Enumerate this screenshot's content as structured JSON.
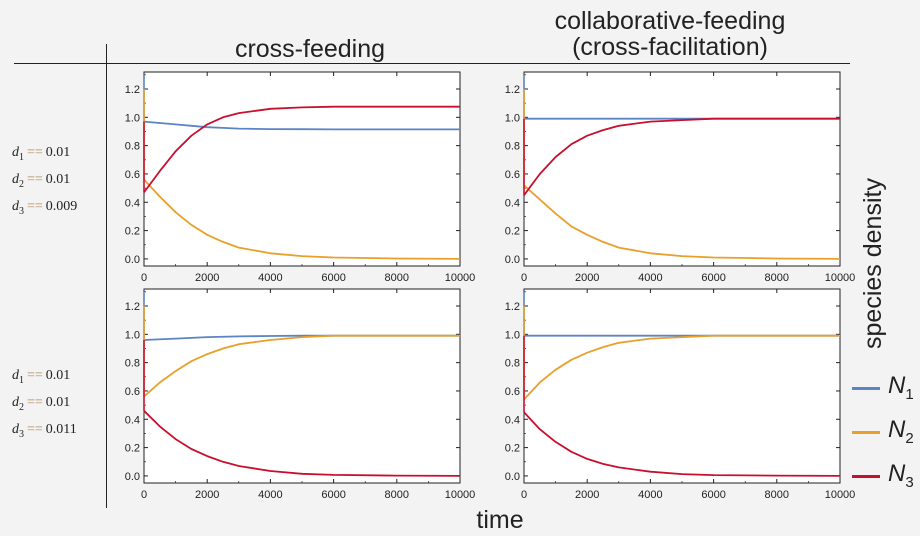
{
  "columns": [
    {
      "title_lines": [
        "cross-feeding"
      ]
    },
    {
      "title_lines": [
        "collaborative-feeding",
        "(cross-facilitation)"
      ]
    }
  ],
  "rows": [
    {
      "params": [
        {
          "sym": "d",
          "sub": "1",
          "eq": "==",
          "val": "0.01"
        },
        {
          "sym": "d",
          "sub": "2",
          "eq": "==",
          "val": "0.01"
        },
        {
          "sym": "d",
          "sub": "3",
          "eq": "==",
          "val": "0.009"
        }
      ]
    },
    {
      "params": [
        {
          "sym": "d",
          "sub": "1",
          "eq": "==",
          "val": "0.01"
        },
        {
          "sym": "d",
          "sub": "2",
          "eq": "==",
          "val": "0.01"
        },
        {
          "sym": "d",
          "sub": "3",
          "eq": "==",
          "val": "0.011"
        }
      ]
    }
  ],
  "ylabel": "species density",
  "xlabel": "time",
  "legend": [
    {
      "sym": "N",
      "sub": "1",
      "color": "#5b84c4"
    },
    {
      "sym": "N",
      "sub": "2",
      "color": "#e8a02b"
    },
    {
      "sym": "N",
      "sub": "3",
      "color": "#c8102e"
    }
  ],
  "chart_data": [
    {
      "type": "line",
      "panel": "cross-feeding, row 1",
      "xlim": [
        0,
        10000
      ],
      "ylim": [
        -0.05,
        1.32
      ],
      "xticks": [
        "0",
        "2000",
        "4000",
        "6000",
        "8000",
        "10000"
      ],
      "yticks": [
        "0.0",
        "0.2",
        "0.4",
        "0.6",
        "0.8",
        "1.0",
        "1.2"
      ],
      "series": [
        {
          "color": "#5b84c4",
          "initial_spike": 1.3,
          "x": [
            0,
            500,
            1000,
            1500,
            2000,
            2500,
            3000,
            4000,
            5000,
            6000,
            8000,
            10000
          ],
          "y": [
            0.97,
            0.96,
            0.95,
            0.94,
            0.93,
            0.925,
            0.92,
            0.917,
            0.916,
            0.915,
            0.915,
            0.915
          ]
        },
        {
          "color": "#e8a02b",
          "initial_spike": 1.2,
          "x": [
            0,
            500,
            1000,
            1500,
            2000,
            2500,
            3000,
            4000,
            5000,
            6000,
            8000,
            10000
          ],
          "y": [
            0.56,
            0.44,
            0.33,
            0.24,
            0.17,
            0.12,
            0.08,
            0.04,
            0.02,
            0.01,
            0.003,
            0.0
          ]
        },
        {
          "color": "#c8102e",
          "initial_spike": 0.97,
          "x": [
            0,
            500,
            1000,
            1500,
            2000,
            2500,
            3000,
            4000,
            5000,
            6000,
            8000,
            10000
          ],
          "y": [
            0.47,
            0.62,
            0.76,
            0.87,
            0.95,
            1.0,
            1.03,
            1.06,
            1.07,
            1.075,
            1.075,
            1.075
          ]
        }
      ]
    },
    {
      "type": "line",
      "panel": "collaborative-feeding, row 1",
      "xlim": [
        0,
        10000
      ],
      "ylim": [
        -0.05,
        1.32
      ],
      "xticks": [
        "0",
        "2000",
        "4000",
        "6000",
        "8000",
        "10000"
      ],
      "yticks": [
        "0.0",
        "0.2",
        "0.4",
        "0.6",
        "0.8",
        "1.0",
        "1.2"
      ],
      "series": [
        {
          "color": "#5b84c4",
          "initial_spike": 1.3,
          "x": [
            0,
            2000,
            4000,
            6000,
            8000,
            10000
          ],
          "y": [
            0.99,
            0.99,
            0.99,
            0.99,
            0.99,
            0.99
          ]
        },
        {
          "color": "#e8a02b",
          "initial_spike": 1.2,
          "x": [
            0,
            500,
            1000,
            1500,
            2000,
            2500,
            3000,
            4000,
            5000,
            6000,
            8000,
            10000
          ],
          "y": [
            0.52,
            0.42,
            0.32,
            0.23,
            0.17,
            0.12,
            0.08,
            0.04,
            0.02,
            0.01,
            0.003,
            0.0
          ]
        },
        {
          "color": "#c8102e",
          "initial_spike": 0.99,
          "x": [
            0,
            500,
            1000,
            1500,
            2000,
            2500,
            3000,
            4000,
            5000,
            6000,
            8000,
            10000
          ],
          "y": [
            0.45,
            0.6,
            0.72,
            0.81,
            0.87,
            0.91,
            0.94,
            0.97,
            0.98,
            0.99,
            0.99,
            0.99
          ]
        }
      ]
    },
    {
      "type": "line",
      "panel": "cross-feeding, row 2",
      "xlim": [
        0,
        10000
      ],
      "ylim": [
        -0.05,
        1.32
      ],
      "xticks": [
        "0",
        "2000",
        "4000",
        "6000",
        "8000",
        "10000"
      ],
      "yticks": [
        "0.0",
        "0.2",
        "0.4",
        "0.6",
        "0.8",
        "1.0",
        "1.2"
      ],
      "series": [
        {
          "color": "#5b84c4",
          "initial_spike": 1.3,
          "x": [
            0,
            1000,
            2000,
            3000,
            4000,
            5000,
            6000,
            8000,
            10000
          ],
          "y": [
            0.96,
            0.97,
            0.98,
            0.985,
            0.988,
            0.99,
            0.99,
            0.99,
            0.99
          ]
        },
        {
          "color": "#e8a02b",
          "initial_spike": 1.2,
          "x": [
            0,
            500,
            1000,
            1500,
            2000,
            2500,
            3000,
            4000,
            5000,
            6000,
            8000,
            10000
          ],
          "y": [
            0.56,
            0.66,
            0.74,
            0.81,
            0.86,
            0.9,
            0.93,
            0.96,
            0.98,
            0.99,
            0.99,
            0.99
          ]
        },
        {
          "color": "#c8102e",
          "initial_spike": 0.96,
          "x": [
            0,
            500,
            1000,
            1500,
            2000,
            2500,
            3000,
            4000,
            5000,
            6000,
            8000,
            10000
          ],
          "y": [
            0.46,
            0.35,
            0.26,
            0.19,
            0.14,
            0.1,
            0.07,
            0.035,
            0.015,
            0.007,
            0.002,
            0.0
          ]
        }
      ]
    },
    {
      "type": "line",
      "panel": "collaborative-feeding, row 2",
      "xlim": [
        0,
        10000
      ],
      "ylim": [
        -0.05,
        1.32
      ],
      "xticks": [
        "0",
        "2000",
        "4000",
        "6000",
        "8000",
        "10000"
      ],
      "yticks": [
        "0.0",
        "0.2",
        "0.4",
        "0.6",
        "0.8",
        "1.0",
        "1.2"
      ],
      "series": [
        {
          "color": "#5b84c4",
          "initial_spike": 1.3,
          "x": [
            0,
            2000,
            4000,
            6000,
            8000,
            10000
          ],
          "y": [
            0.99,
            0.99,
            0.99,
            0.99,
            0.99,
            0.99
          ]
        },
        {
          "color": "#e8a02b",
          "initial_spike": 1.2,
          "x": [
            0,
            500,
            1000,
            1500,
            2000,
            2500,
            3000,
            4000,
            5000,
            6000,
            8000,
            10000
          ],
          "y": [
            0.54,
            0.66,
            0.75,
            0.82,
            0.87,
            0.91,
            0.94,
            0.97,
            0.98,
            0.99,
            0.99,
            0.99
          ]
        },
        {
          "color": "#c8102e",
          "initial_spike": 0.99,
          "x": [
            0,
            500,
            1000,
            1500,
            2000,
            2500,
            3000,
            4000,
            5000,
            6000,
            8000,
            10000
          ],
          "y": [
            0.45,
            0.33,
            0.24,
            0.17,
            0.12,
            0.085,
            0.06,
            0.03,
            0.013,
            0.006,
            0.002,
            0.0
          ]
        }
      ]
    }
  ]
}
